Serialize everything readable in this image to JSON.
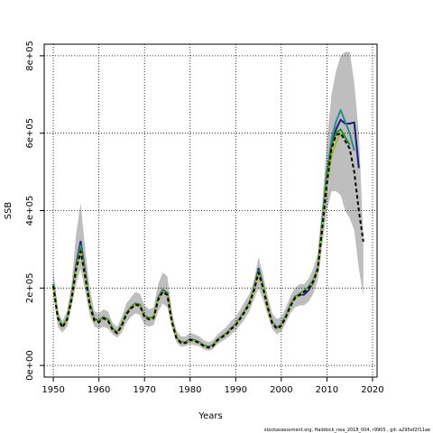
{
  "chart_data": {
    "type": "line",
    "title": "",
    "xlabel": "Years",
    "ylabel": "SSB",
    "xlim": [
      1948,
      2021
    ],
    "ylim": [
      -30000,
      830000
    ],
    "grid": true,
    "x_ticks": [
      1950,
      1960,
      1970,
      1980,
      1990,
      2000,
      2010,
      2020
    ],
    "x_tick_labels": [
      "1950",
      "1960",
      "1970",
      "1980",
      "1990",
      "2000",
      "2010",
      "2020"
    ],
    "y_ticks": [
      0,
      200000,
      400000,
      600000,
      800000
    ],
    "y_tick_labels": [
      "0e+00",
      "2e+05",
      "4e+05",
      "6e+05",
      "8e+05"
    ],
    "footer": "stockassessment.org, Haddock_nea_2018_004, r9905 , git: a295ef2f11ae",
    "band": {
      "color": "#bebebe",
      "x": [
        1950,
        1951,
        1952,
        1953,
        1954,
        1955,
        1956,
        1957,
        1958,
        1959,
        1960,
        1961,
        1962,
        1963,
        1964,
        1965,
        1966,
        1967,
        1968,
        1969,
        1970,
        1971,
        1972,
        1973,
        1974,
        1975,
        1976,
        1977,
        1978,
        1979,
        1980,
        1981,
        1982,
        1983,
        1984,
        1985,
        1986,
        1987,
        1988,
        1989,
        1990,
        1991,
        1992,
        1993,
        1994,
        1995,
        1996,
        1997,
        1998,
        1999,
        2000,
        2001,
        2002,
        2003,
        2004,
        2005,
        2006,
        2007,
        2008,
        2009,
        2010,
        2011,
        2012,
        2013,
        2014,
        2015,
        2016,
        2017,
        2018
      ],
      "upper": [
        250000,
        140000,
        115000,
        140000,
        210000,
        340000,
        420000,
        300000,
        200000,
        140000,
        135000,
        145000,
        140000,
        110000,
        100000,
        125000,
        160000,
        175000,
        190000,
        185000,
        155000,
        145000,
        150000,
        210000,
        240000,
        230000,
        140000,
        90000,
        75000,
        75000,
        85000,
        80000,
        75000,
        65000,
        60000,
        65000,
        80000,
        90000,
        100000,
        115000,
        125000,
        145000,
        165000,
        185000,
        220000,
        280000,
        235000,
        180000,
        135000,
        120000,
        125000,
        150000,
        180000,
        200000,
        210000,
        210000,
        225000,
        250000,
        290000,
        420000,
        580000,
        700000,
        760000,
        800000,
        810000,
        810000,
        730000,
        600000,
        330000
      ],
      "lower": [
        180000,
        100000,
        85000,
        100000,
        150000,
        210000,
        250000,
        190000,
        130000,
        100000,
        95000,
        100000,
        95000,
        80000,
        72000,
        85000,
        110000,
        125000,
        135000,
        130000,
        105000,
        100000,
        105000,
        140000,
        160000,
        150000,
        100000,
        60000,
        48000,
        50000,
        55000,
        52000,
        50000,
        42000,
        38000,
        42000,
        55000,
        62000,
        70000,
        80000,
        90000,
        105000,
        120000,
        140000,
        170000,
        200000,
        170000,
        130000,
        95000,
        80000,
        88000,
        110000,
        135000,
        150000,
        155000,
        155000,
        165000,
        185000,
        220000,
        310000,
        400000,
        450000,
        450000,
        440000,
        400000,
        380000,
        350000,
        250000,
        180000
      ]
    },
    "series": [
      {
        "color": "#1a1a80",
        "dashed": false,
        "x": [
          1950,
          1951,
          1952,
          1953,
          1954,
          1955,
          1956,
          1957,
          1958,
          1959,
          1960,
          1961,
          1962,
          1963,
          1964,
          1965,
          1966,
          1967,
          1968,
          1969,
          1970,
          1971,
          1972,
          1973,
          1974,
          1975,
          1976,
          1977,
          1978,
          1979,
          1980,
          1981,
          1982,
          1983,
          1984,
          1985,
          1986,
          1987,
          1988,
          1989,
          1990,
          1991,
          1992,
          1993,
          1994,
          1995,
          1996,
          1997,
          1998,
          1999,
          2000,
          2001,
          2002,
          2003,
          2004,
          2005,
          2006,
          2007,
          2008,
          2009,
          2010,
          2011,
          2012,
          2013,
          2014,
          2015,
          2016,
          2017
        ],
        "values": [
          210000,
          125000,
          100000,
          120000,
          175000,
          260000,
          320000,
          240000,
          160000,
          120000,
          115000,
          125000,
          118000,
          95000,
          85000,
          105000,
          135000,
          150000,
          160000,
          157000,
          128000,
          122000,
          125000,
          175000,
          195000,
          187000,
          115000,
          72000,
          60000,
          60000,
          68000,
          65000,
          60000,
          52000,
          48000,
          52000,
          67000,
          75000,
          83000,
          96000,
          106000,
          124000,
          142000,
          162000,
          197000,
          250000,
          205000,
          153000,
          112000,
          98000,
          105000,
          128000,
          157000,
          178000,
          183000,
          183000,
          195000,
          215000,
          252000,
          370000,
          500000,
          570000,
          610000,
          635000,
          625000,
          625000,
          628000,
          510000
        ]
      },
      {
        "color": "#2e8b8b",
        "dashed": false,
        "x": [
          1950,
          1951,
          1952,
          1953,
          1954,
          1955,
          1956,
          1957,
          1958,
          1959,
          1960,
          1961,
          1962,
          1963,
          1964,
          1965,
          1966,
          1967,
          1968,
          1969,
          1970,
          1971,
          1972,
          1973,
          1974,
          1975,
          1976,
          1977,
          1978,
          1979,
          1980,
          1981,
          1982,
          1983,
          1984,
          1985,
          1986,
          1987,
          1988,
          1989,
          1990,
          1991,
          1992,
          1993,
          1994,
          1995,
          1996,
          1997,
          1998,
          1999,
          2000,
          2001,
          2002,
          2003,
          2004,
          2005,
          2006,
          2007,
          2008,
          2009,
          2010,
          2011,
          2012,
          2013,
          2014,
          2015,
          2016
        ],
        "values": [
          210000,
          125000,
          100000,
          120000,
          175000,
          255000,
          310000,
          235000,
          158000,
          118000,
          114000,
          124000,
          117000,
          94000,
          84000,
          104000,
          134000,
          149000,
          159000,
          156000,
          127000,
          121000,
          124000,
          173000,
          193000,
          185000,
          114000,
          71000,
          59000,
          59000,
          67000,
          64000,
          59000,
          51000,
          47000,
          51000,
          66000,
          74000,
          82000,
          95000,
          105000,
          123000,
          141000,
          161000,
          195000,
          245000,
          203000,
          152000,
          111000,
          97000,
          104000,
          127000,
          156000,
          177000,
          185000,
          193000,
          203000,
          220000,
          255000,
          370000,
          495000,
          585000,
          630000,
          660000,
          630000,
          600000,
          555000
        ]
      },
      {
        "color": "#228b22",
        "dashed": false,
        "x": [
          1950,
          1951,
          1952,
          1953,
          1954,
          1955,
          1956,
          1957,
          1958,
          1959,
          1960,
          1961,
          1962,
          1963,
          1964,
          1965,
          1966,
          1967,
          1968,
          1969,
          1970,
          1971,
          1972,
          1973,
          1974,
          1975,
          1976,
          1977,
          1978,
          1979,
          1980,
          1981,
          1982,
          1983,
          1984,
          1985,
          1986,
          1987,
          1988,
          1989,
          1990,
          1991,
          1992,
          1993,
          1994,
          1995,
          1996,
          1997,
          1998,
          1999,
          2000,
          2001,
          2002,
          2003,
          2004,
          2005,
          2006,
          2007,
          2008,
          2009,
          2010,
          2011,
          2012,
          2013,
          2014,
          2015
        ],
        "values": [
          210000,
          125000,
          100000,
          120000,
          175000,
          252000,
          300000,
          232000,
          157000,
          118000,
          114000,
          124000,
          117000,
          94000,
          84000,
          104000,
          134000,
          149000,
          159000,
          156000,
          127000,
          121000,
          124000,
          173000,
          193000,
          185000,
          114000,
          71000,
          59000,
          59000,
          67000,
          64000,
          59000,
          51000,
          47000,
          51000,
          66000,
          74000,
          82000,
          95000,
          105000,
          123000,
          141000,
          161000,
          195000,
          243000,
          202000,
          151000,
          110000,
          96000,
          103000,
          126000,
          155000,
          176000,
          184000,
          192000,
          202000,
          218000,
          250000,
          360000,
          480000,
          570000,
          600000,
          610000,
          590000,
          570000
        ]
      },
      {
        "color": "#a0b92d",
        "dashed": false,
        "x": [
          1950,
          1951,
          1952,
          1953,
          1954,
          1955,
          1956,
          1957,
          1958,
          1959,
          1960,
          1961,
          1962,
          1963,
          1964,
          1965,
          1966,
          1967,
          1968,
          1969,
          1970,
          1971,
          1972,
          1973,
          1974,
          1975,
          1976,
          1977,
          1978,
          1979,
          1980,
          1981,
          1982,
          1983,
          1984,
          1985,
          1986,
          1987,
          1988,
          1989,
          1990,
          1991,
          1992,
          1993,
          1994,
          1995,
          1996,
          1997,
          1998,
          1999,
          2000,
          2001,
          2002,
          2003,
          2004,
          2005,
          2006,
          2007,
          2008,
          2009,
          2010,
          2011,
          2012,
          2013
        ],
        "values": [
          205000,
          122000,
          98000,
          118000,
          170000,
          248000,
          295000,
          228000,
          155000,
          116000,
          112000,
          122000,
          115000,
          92000,
          83000,
          102000,
          132000,
          147000,
          157000,
          154000,
          125000,
          119000,
          122000,
          170000,
          190000,
          182000,
          112000,
          70000,
          58000,
          58000,
          66000,
          63000,
          58000,
          50000,
          46000,
          50000,
          65000,
          73000,
          81000,
          94000,
          104000,
          121000,
          139000,
          159000,
          193000,
          240000,
          200000,
          150000,
          109000,
          95000,
          102000,
          125000,
          153000,
          174000,
          182000,
          190000,
          200000,
          216000,
          248000,
          355000,
          470000,
          540000,
          575000,
          600000
        ]
      },
      {
        "color": "#000000",
        "dashed": true,
        "x": [
          1950,
          1951,
          1952,
          1953,
          1954,
          1955,
          1956,
          1957,
          1958,
          1959,
          1960,
          1961,
          1962,
          1963,
          1964,
          1965,
          1966,
          1967,
          1968,
          1969,
          1970,
          1971,
          1972,
          1973,
          1974,
          1975,
          1976,
          1977,
          1978,
          1979,
          1980,
          1981,
          1982,
          1983,
          1984,
          1985,
          1986,
          1987,
          1988,
          1989,
          1990,
          1991,
          1992,
          1993,
          1994,
          1995,
          1996,
          1997,
          1998,
          1999,
          2000,
          2001,
          2002,
          2003,
          2004,
          2005,
          2006,
          2007,
          2008,
          2009,
          2010,
          2011,
          2012,
          2013,
          2014,
          2015,
          2016,
          2017,
          2018
        ],
        "values": [
          205000,
          122000,
          98000,
          118000,
          170000,
          248000,
          295000,
          228000,
          155000,
          116000,
          112000,
          122000,
          115000,
          92000,
          83000,
          102000,
          132000,
          147000,
          157000,
          154000,
          125000,
          119000,
          122000,
          170000,
          190000,
          182000,
          112000,
          70000,
          58000,
          58000,
          66000,
          63000,
          58000,
          50000,
          46000,
          50000,
          65000,
          73000,
          81000,
          94000,
          104000,
          121000,
          139000,
          159000,
          193000,
          240000,
          200000,
          150000,
          109000,
          95000,
          102000,
          125000,
          153000,
          174000,
          182000,
          190000,
          200000,
          216000,
          248000,
          355000,
          470000,
          560000,
          595000,
          600000,
          580000,
          560000,
          500000,
          400000,
          320000
        ]
      }
    ]
  }
}
